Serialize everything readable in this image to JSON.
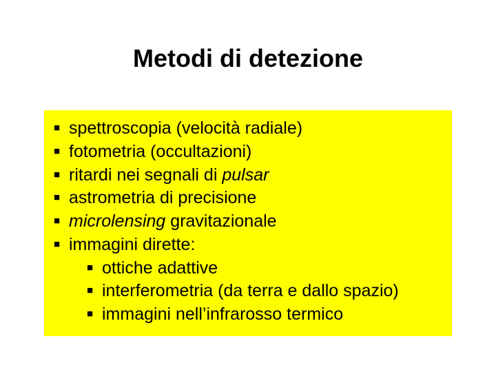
{
  "slide": {
    "title": "Metodi di detezione",
    "title_fontsize": 36,
    "body_fontsize": 25,
    "background_color": "#ffffff",
    "highlight_color": "#ffff00",
    "text_color": "#000000",
    "bullets": [
      {
        "text": "spettroscopia (velocità radiale)",
        "italic_words": []
      },
      {
        "text": "fotometria (occultazioni)",
        "italic_words": []
      },
      {
        "text_prefix": "ritardi nei segnali di ",
        "italic": "pulsar"
      },
      {
        "text": "astrometria di precisione",
        "italic_words": []
      },
      {
        "italic": "microlensing",
        "text_suffix": " gravitazionale"
      },
      {
        "text": "immagini dirette:",
        "children": [
          {
            "text": "ottiche adattive"
          },
          {
            "text": "interferometria (da terra e dallo spazio)"
          },
          {
            "text": "immagini nell’infrarosso termico"
          }
        ]
      }
    ]
  }
}
